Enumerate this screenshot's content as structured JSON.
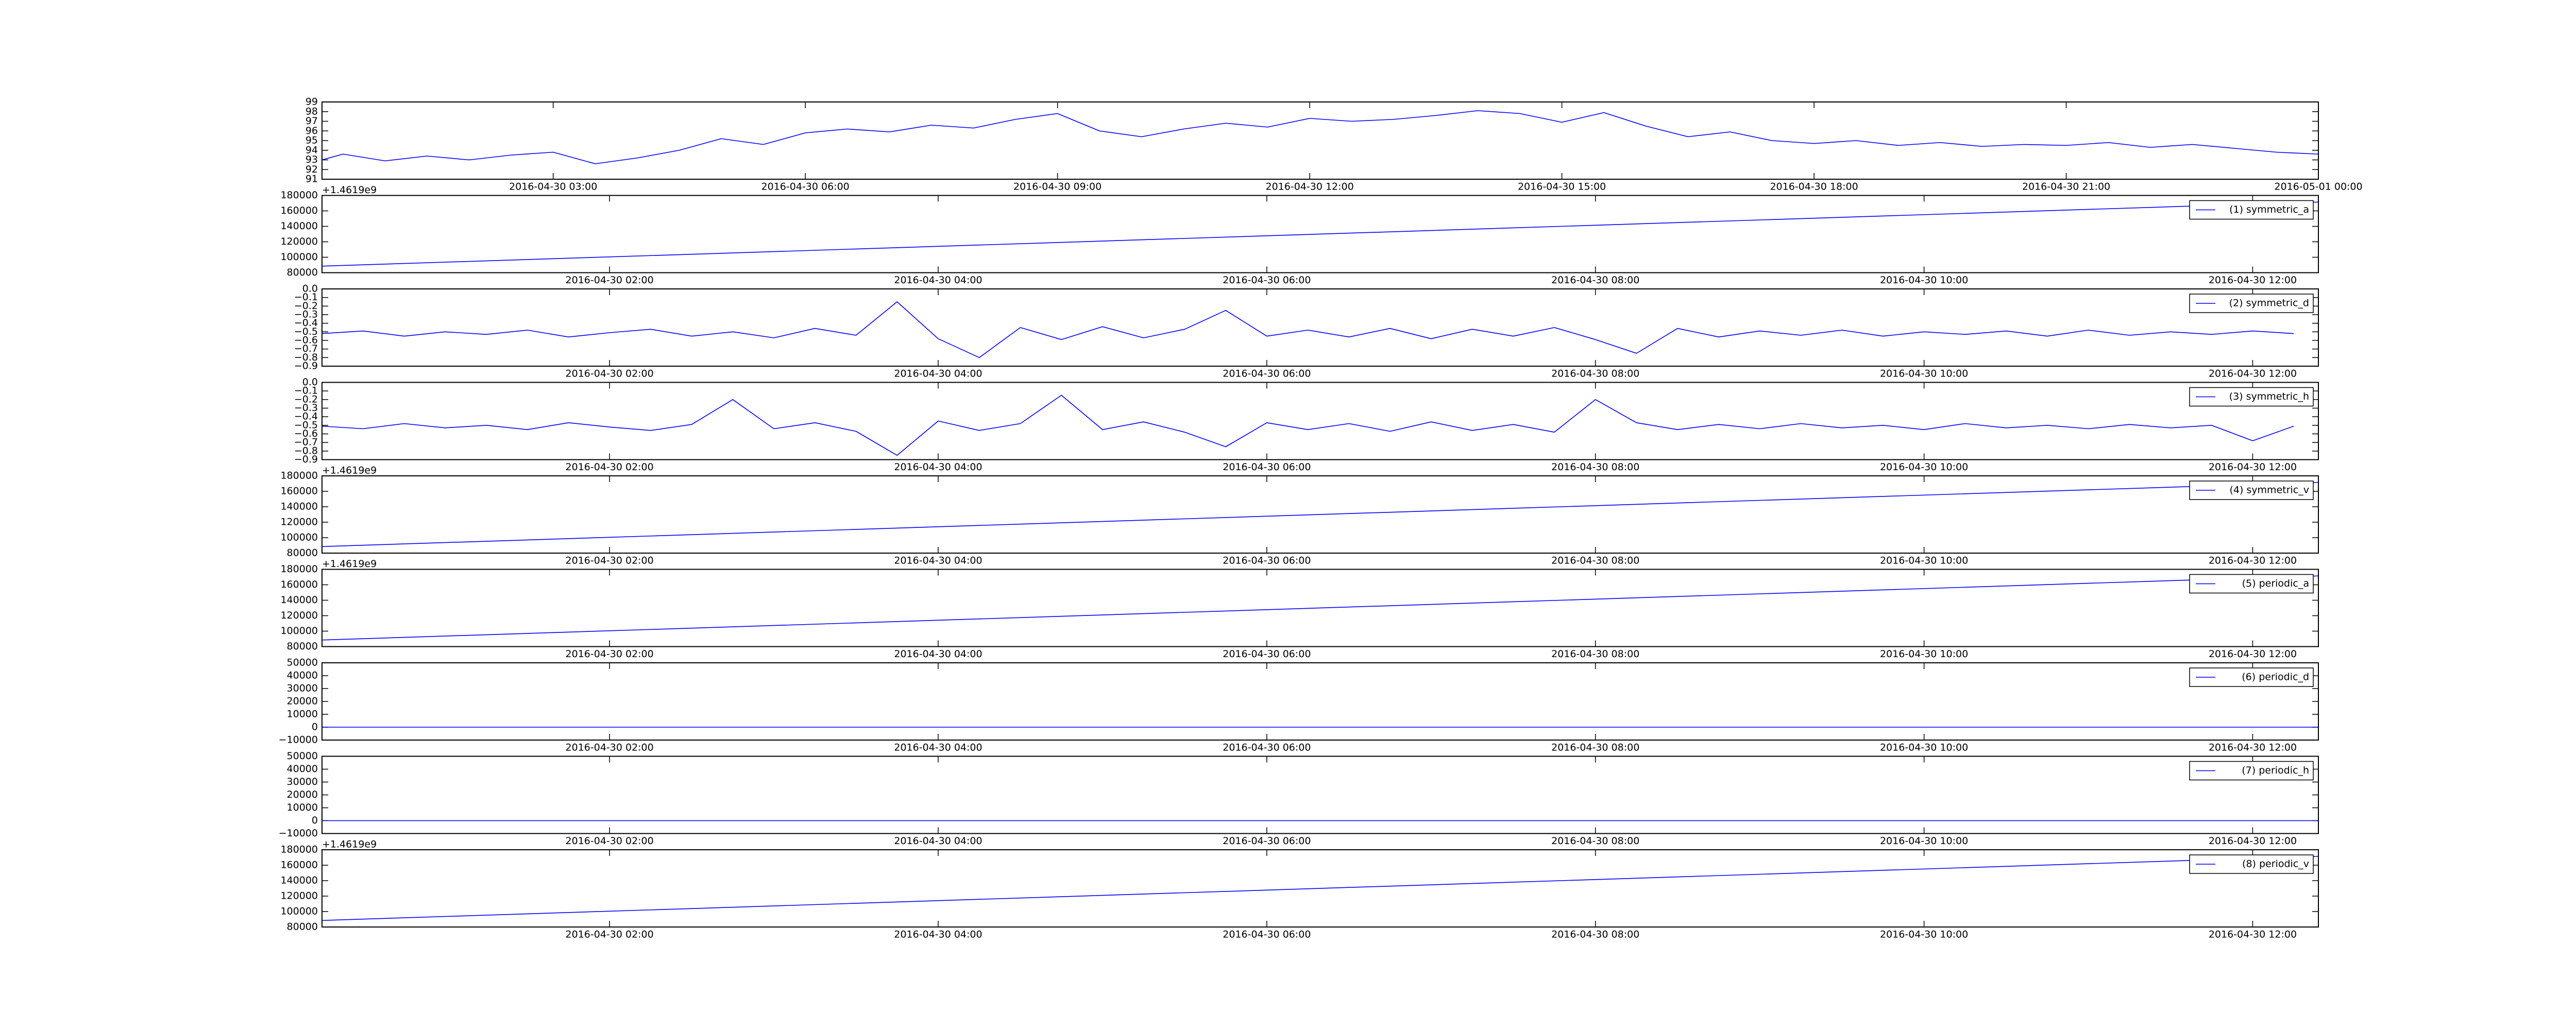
{
  "chart_data": [
    {
      "type": "line",
      "color": "#0000ff",
      "x": [
        "2016-04-30 00:15",
        "2016-04-30 00:30",
        "2016-04-30 01:00",
        "2016-04-30 01:30",
        "2016-04-30 02:00",
        "2016-04-30 02:30",
        "2016-04-30 03:00",
        "2016-04-30 03:30",
        "2016-04-30 04:00",
        "2016-04-30 04:30",
        "2016-04-30 05:00",
        "2016-04-30 05:30",
        "2016-04-30 06:00",
        "2016-04-30 06:30",
        "2016-04-30 07:00",
        "2016-04-30 07:30",
        "2016-04-30 08:00",
        "2016-04-30 08:30",
        "2016-04-30 09:00",
        "2016-04-30 09:30",
        "2016-04-30 10:00",
        "2016-04-30 10:30",
        "2016-04-30 11:00",
        "2016-04-30 11:30",
        "2016-04-30 12:00",
        "2016-04-30 12:30",
        "2016-04-30 13:00",
        "2016-04-30 13:30",
        "2016-04-30 14:00",
        "2016-04-30 14:30",
        "2016-04-30 15:00",
        "2016-04-30 15:30",
        "2016-04-30 16:00",
        "2016-04-30 16:30",
        "2016-04-30 17:00",
        "2016-04-30 17:30",
        "2016-04-30 18:00",
        "2016-04-30 18:30",
        "2016-04-30 19:00",
        "2016-04-30 19:30",
        "2016-04-30 20:00",
        "2016-04-30 20:30",
        "2016-04-30 21:00",
        "2016-04-30 21:30",
        "2016-04-30 22:00",
        "2016-04-30 22:30",
        "2016-04-30 23:00",
        "2016-04-30 23:30",
        "2016-05-01 00:00"
      ],
      "values": [
        93.0,
        93.6,
        92.9,
        93.4,
        93.0,
        93.5,
        93.8,
        92.6,
        93.2,
        94.0,
        95.2,
        94.6,
        95.8,
        96.2,
        95.9,
        96.6,
        96.3,
        97.2,
        97.8,
        96.0,
        95.4,
        96.2,
        96.8,
        96.4,
        97.3,
        97.0,
        97.2,
        97.6,
        98.1,
        97.8,
        96.9,
        97.9,
        96.5,
        95.4,
        95.9,
        95.0,
        94.7,
        95.0,
        94.5,
        94.8,
        94.4,
        94.6,
        94.5,
        94.8,
        94.3,
        94.6,
        94.2,
        93.8,
        93.6
      ],
      "xlim": [
        "2016-04-30 00:15",
        "2016-05-01 00:00"
      ],
      "xticks": [
        "2016-04-30 03:00",
        "2016-04-30 06:00",
        "2016-04-30 09:00",
        "2016-04-30 12:00",
        "2016-04-30 15:00",
        "2016-04-30 18:00",
        "2016-04-30 21:00",
        "2016-05-01 00:00"
      ],
      "ylim": [
        91,
        99
      ],
      "yticks": [
        91,
        92,
        93,
        94,
        95,
        96,
        97,
        98,
        99
      ]
    },
    {
      "type": "line",
      "y_offset_text": "+1.4619e9",
      "legend": "upper right",
      "x": [
        "2016-04-30 00:15",
        "2016-04-30 12:24"
      ],
      "series": [
        {
          "name": "(1) symmetric_a",
          "color": "#0000ff",
          "values": [
            88500,
            171500
          ]
        }
      ],
      "xlim": [
        "2016-04-30 00:15",
        "2016-04-30 12:24"
      ],
      "xticks": [
        "2016-04-30 02:00",
        "2016-04-30 04:00",
        "2016-04-30 06:00",
        "2016-04-30 08:00",
        "2016-04-30 10:00",
        "2016-04-30 12:00"
      ],
      "ylim": [
        80000,
        180000
      ],
      "yticks": [
        80000,
        100000,
        120000,
        140000,
        160000,
        180000
      ]
    },
    {
      "type": "line",
      "legend": "upper right",
      "x": [
        "2016-04-30 00:15",
        "2016-04-30 00:30",
        "2016-04-30 00:45",
        "2016-04-30 01:00",
        "2016-04-30 01:15",
        "2016-04-30 01:30",
        "2016-04-30 01:45",
        "2016-04-30 02:00",
        "2016-04-30 02:15",
        "2016-04-30 02:30",
        "2016-04-30 02:45",
        "2016-04-30 03:00",
        "2016-04-30 03:15",
        "2016-04-30 03:30",
        "2016-04-30 03:45",
        "2016-04-30 04:00",
        "2016-04-30 04:15",
        "2016-04-30 04:30",
        "2016-04-30 04:45",
        "2016-04-30 05:00",
        "2016-04-30 05:15",
        "2016-04-30 05:30",
        "2016-04-30 05:45",
        "2016-04-30 06:00",
        "2016-04-30 06:15",
        "2016-04-30 06:30",
        "2016-04-30 06:45",
        "2016-04-30 07:00",
        "2016-04-30 07:15",
        "2016-04-30 07:30",
        "2016-04-30 07:45",
        "2016-04-30 08:00",
        "2016-04-30 08:15",
        "2016-04-30 08:30",
        "2016-04-30 08:45",
        "2016-04-30 09:00",
        "2016-04-30 09:15",
        "2016-04-30 09:30",
        "2016-04-30 09:45",
        "2016-04-30 10:00",
        "2016-04-30 10:15",
        "2016-04-30 10:30",
        "2016-04-30 10:45",
        "2016-04-30 11:00",
        "2016-04-30 11:15",
        "2016-04-30 11:30",
        "2016-04-30 11:45",
        "2016-04-30 12:00",
        "2016-04-30 12:15"
      ],
      "series": [
        {
          "name": "(2) symmetric_d",
          "color": "#0000ff",
          "values": [
            -0.52,
            -0.49,
            -0.55,
            -0.5,
            -0.53,
            -0.48,
            -0.56,
            -0.51,
            -0.47,
            -0.55,
            -0.5,
            -0.57,
            -0.46,
            -0.54,
            -0.15,
            -0.58,
            -0.8,
            -0.45,
            -0.59,
            -0.44,
            -0.57,
            -0.47,
            -0.25,
            -0.55,
            -0.48,
            -0.56,
            -0.46,
            -0.58,
            -0.47,
            -0.55,
            -0.45,
            -0.59,
            -0.75,
            -0.46,
            -0.56,
            -0.49,
            -0.54,
            -0.48,
            -0.55,
            -0.5,
            -0.53,
            -0.49,
            -0.55,
            -0.48,
            -0.54,
            -0.5,
            -0.53,
            -0.49,
            -0.52
          ]
        }
      ],
      "xlim": [
        "2016-04-30 00:15",
        "2016-04-30 12:24"
      ],
      "xticks": [
        "2016-04-30 02:00",
        "2016-04-30 04:00",
        "2016-04-30 06:00",
        "2016-04-30 08:00",
        "2016-04-30 10:00",
        "2016-04-30 12:00"
      ],
      "ylim": [
        -0.9,
        0.0
      ],
      "yticks": [
        {
          "value": -0.9,
          "label": "−0.9"
        },
        {
          "value": -0.8,
          "label": "−0.8"
        },
        {
          "value": -0.7,
          "label": "−0.7"
        },
        {
          "value": -0.6,
          "label": "−0.6"
        },
        {
          "value": -0.5,
          "label": "−0.5"
        },
        {
          "value": -0.4,
          "label": "−0.4"
        },
        {
          "value": -0.3,
          "label": "−0.3"
        },
        {
          "value": -0.2,
          "label": "−0.2"
        },
        {
          "value": -0.1,
          "label": "−0.1"
        },
        {
          "value": 0,
          "label": "0.0"
        }
      ]
    },
    {
      "type": "line",
      "legend": "upper right",
      "x": [
        "2016-04-30 00:15",
        "2016-04-30 00:30",
        "2016-04-30 00:45",
        "2016-04-30 01:00",
        "2016-04-30 01:15",
        "2016-04-30 01:30",
        "2016-04-30 01:45",
        "2016-04-30 02:00",
        "2016-04-30 02:15",
        "2016-04-30 02:30",
        "2016-04-30 02:45",
        "2016-04-30 03:00",
        "2016-04-30 03:15",
        "2016-04-30 03:30",
        "2016-04-30 03:45",
        "2016-04-30 04:00",
        "2016-04-30 04:15",
        "2016-04-30 04:30",
        "2016-04-30 04:45",
        "2016-04-30 05:00",
        "2016-04-30 05:15",
        "2016-04-30 05:30",
        "2016-04-30 05:45",
        "2016-04-30 06:00",
        "2016-04-30 06:15",
        "2016-04-30 06:30",
        "2016-04-30 06:45",
        "2016-04-30 07:00",
        "2016-04-30 07:15",
        "2016-04-30 07:30",
        "2016-04-30 07:45",
        "2016-04-30 08:00",
        "2016-04-30 08:15",
        "2016-04-30 08:30",
        "2016-04-30 08:45",
        "2016-04-30 09:00",
        "2016-04-30 09:15",
        "2016-04-30 09:30",
        "2016-04-30 09:45",
        "2016-04-30 10:00",
        "2016-04-30 10:15",
        "2016-04-30 10:30",
        "2016-04-30 10:45",
        "2016-04-30 11:00",
        "2016-04-30 11:15",
        "2016-04-30 11:30",
        "2016-04-30 11:45",
        "2016-04-30 12:00",
        "2016-04-30 12:15"
      ],
      "series": [
        {
          "name": "(3) symmetric_h",
          "color": "#0000ff",
          "values": [
            -0.51,
            -0.54,
            -0.48,
            -0.53,
            -0.5,
            -0.55,
            -0.47,
            -0.52,
            -0.56,
            -0.49,
            -0.2,
            -0.54,
            -0.47,
            -0.57,
            -0.85,
            -0.45,
            -0.56,
            -0.48,
            -0.15,
            -0.55,
            -0.46,
            -0.58,
            -0.75,
            -0.47,
            -0.55,
            -0.48,
            -0.57,
            -0.46,
            -0.56,
            -0.49,
            -0.58,
            -0.2,
            -0.47,
            -0.55,
            -0.49,
            -0.54,
            -0.48,
            -0.53,
            -0.5,
            -0.55,
            -0.48,
            -0.53,
            -0.5,
            -0.54,
            -0.49,
            -0.53,
            -0.5,
            -0.68,
            -0.51
          ]
        }
      ],
      "xlim": [
        "2016-04-30 00:15",
        "2016-04-30 12:24"
      ],
      "xticks": [
        "2016-04-30 02:00",
        "2016-04-30 04:00",
        "2016-04-30 06:00",
        "2016-04-30 08:00",
        "2016-04-30 10:00",
        "2016-04-30 12:00"
      ],
      "ylim": [
        -0.9,
        0.0
      ],
      "yticks": [
        {
          "value": -0.9,
          "label": "−0.9"
        },
        {
          "value": -0.8,
          "label": "−0.8"
        },
        {
          "value": -0.7,
          "label": "−0.7"
        },
        {
          "value": -0.6,
          "label": "−0.6"
        },
        {
          "value": -0.5,
          "label": "−0.5"
        },
        {
          "value": -0.4,
          "label": "−0.4"
        },
        {
          "value": -0.3,
          "label": "−0.3"
        },
        {
          "value": -0.2,
          "label": "−0.2"
        },
        {
          "value": -0.1,
          "label": "−0.1"
        },
        {
          "value": 0,
          "label": "0.0"
        }
      ]
    },
    {
      "type": "line",
      "y_offset_text": "+1.4619e9",
      "legend": "upper right",
      "x": [
        "2016-04-30 00:15",
        "2016-04-30 12:24"
      ],
      "series": [
        {
          "name": "(4) symmetric_v",
          "color": "#0000ff",
          "values": [
            88500,
            171500
          ]
        }
      ],
      "xlim": [
        "2016-04-30 00:15",
        "2016-04-30 12:24"
      ],
      "xticks": [
        "2016-04-30 02:00",
        "2016-04-30 04:00",
        "2016-04-30 06:00",
        "2016-04-30 08:00",
        "2016-04-30 10:00",
        "2016-04-30 12:00"
      ],
      "ylim": [
        80000,
        180000
      ],
      "yticks": [
        80000,
        100000,
        120000,
        140000,
        160000,
        180000
      ]
    },
    {
      "type": "line",
      "y_offset_text": "+1.4619e9",
      "legend": "upper right",
      "x": [
        "2016-04-30 00:15",
        "2016-04-30 12:24"
      ],
      "series": [
        {
          "name": "(5) periodic_a",
          "color": "#0000ff",
          "values": [
            88500,
            171500
          ]
        }
      ],
      "xlim": [
        "2016-04-30 00:15",
        "2016-04-30 12:24"
      ],
      "xticks": [
        "2016-04-30 02:00",
        "2016-04-30 04:00",
        "2016-04-30 06:00",
        "2016-04-30 08:00",
        "2016-04-30 10:00",
        "2016-04-30 12:00"
      ],
      "ylim": [
        80000,
        180000
      ],
      "yticks": [
        80000,
        100000,
        120000,
        140000,
        160000,
        180000
      ]
    },
    {
      "type": "line",
      "legend": "upper right",
      "x": [
        "2016-04-30 00:15",
        "2016-04-30 12:24"
      ],
      "series": [
        {
          "name": "(6) periodic_d",
          "color": "#0000ff",
          "values": [
            0,
            0
          ]
        }
      ],
      "xlim": [
        "2016-04-30 00:15",
        "2016-04-30 12:24"
      ],
      "xticks": [
        "2016-04-30 02:00",
        "2016-04-30 04:00",
        "2016-04-30 06:00",
        "2016-04-30 08:00",
        "2016-04-30 10:00",
        "2016-04-30 12:00"
      ],
      "ylim": [
        -10000,
        50000
      ],
      "yticks": [
        {
          "value": -10000,
          "label": "−10000"
        },
        0,
        10000,
        20000,
        30000,
        40000,
        50000
      ]
    },
    {
      "type": "line",
      "legend": "upper right",
      "x": [
        "2016-04-30 00:15",
        "2016-04-30 12:24"
      ],
      "series": [
        {
          "name": "(7) periodic_h",
          "color": "#0000ff",
          "values": [
            0,
            0
          ]
        }
      ],
      "xlim": [
        "2016-04-30 00:15",
        "2016-04-30 12:24"
      ],
      "xticks": [
        "2016-04-30 02:00",
        "2016-04-30 04:00",
        "2016-04-30 06:00",
        "2016-04-30 08:00",
        "2016-04-30 10:00",
        "2016-04-30 12:00"
      ],
      "ylim": [
        -10000,
        50000
      ],
      "yticks": [
        {
          "value": -10000,
          "label": "−10000"
        },
        0,
        10000,
        20000,
        30000,
        40000,
        50000
      ]
    },
    {
      "type": "line",
      "y_offset_text": "+1.4619e9",
      "legend": "upper right",
      "x": [
        "2016-04-30 00:15",
        "2016-04-30 12:24"
      ],
      "series": [
        {
          "name": "(8) periodic_v",
          "color": "#0000ff",
          "values": [
            88500,
            171500
          ]
        }
      ],
      "xlim": [
        "2016-04-30 00:15",
        "2016-04-30 12:24"
      ],
      "xticks": [
        "2016-04-30 02:00",
        "2016-04-30 04:00",
        "2016-04-30 06:00",
        "2016-04-30 08:00",
        "2016-04-30 10:00",
        "2016-04-30 12:00"
      ],
      "ylim": [
        80000,
        180000
      ],
      "yticks": [
        80000,
        100000,
        120000,
        140000,
        160000,
        180000
      ]
    }
  ]
}
